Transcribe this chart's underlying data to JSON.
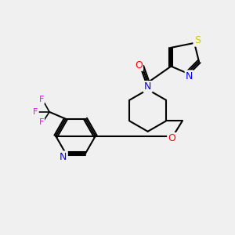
{
  "bg_color": "#f0f0f0",
  "bond_color": "#000000",
  "atom_colors": {
    "N": "#0000ff",
    "O": "#ff0000",
    "S": "#cccc00",
    "F": "#ff00ff",
    "C": "#000000"
  },
  "figsize": [
    3.0,
    3.0
  ],
  "dpi": 100
}
